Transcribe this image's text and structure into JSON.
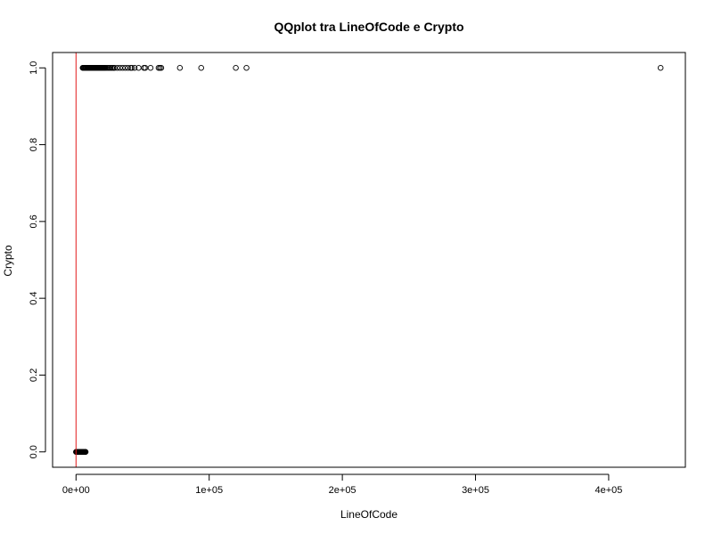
{
  "chart_data": {
    "type": "scatter",
    "title": "QQplot tra LineOfCode e Crypto",
    "xlabel": "LineOfCode",
    "ylabel": "Crypto",
    "xlim": [
      -17600,
      457600
    ],
    "ylim": [
      -0.04,
      1.04
    ],
    "x_ticks": [
      0,
      100000,
      200000,
      300000,
      400000
    ],
    "x_tick_labels": [
      "0e+00",
      "1e+05",
      "2e+05",
      "3e+05",
      "4e+05"
    ],
    "y_ticks": [
      0.0,
      0.2,
      0.4,
      0.6,
      0.8,
      1.0
    ],
    "y_tick_labels": [
      "0.0",
      "0.2",
      "0.4",
      "0.6",
      "0.8",
      "1.0"
    ],
    "grid": false,
    "reference_line": {
      "orientation": "vertical",
      "x": 0,
      "color": "#e31a1c"
    },
    "point_color": "#000000",
    "series": [
      {
        "y": 0,
        "x": [
          0,
          300,
          600,
          900,
          1200,
          1500,
          1800,
          2100,
          2400,
          2700,
          3000,
          3300,
          3600,
          3900,
          4200,
          4500,
          4800,
          5100,
          5400,
          5700,
          6000,
          6300,
          6600,
          6900,
          7200
        ]
      },
      {
        "y": 1,
        "x": [
          5000,
          5500,
          6000,
          6500,
          7000,
          7500,
          8000,
          8500,
          9000,
          9500,
          10000,
          10500,
          11000,
          11500,
          12000,
          12500,
          13000,
          13500,
          14000,
          14500,
          15000,
          15500,
          16000,
          16500,
          17000,
          17500,
          18000,
          18500,
          19000,
          19500,
          20000,
          20500,
          21000,
          21500,
          22000,
          23000,
          24000,
          25000,
          26000,
          27000,
          28000,
          29000,
          31000,
          33000,
          35000,
          37000,
          39000,
          41000,
          42000,
          44000,
          47000,
          51000,
          52000,
          56000,
          62000,
          63000,
          64000,
          78000,
          94000,
          120000,
          128000,
          439000
        ]
      }
    ]
  }
}
